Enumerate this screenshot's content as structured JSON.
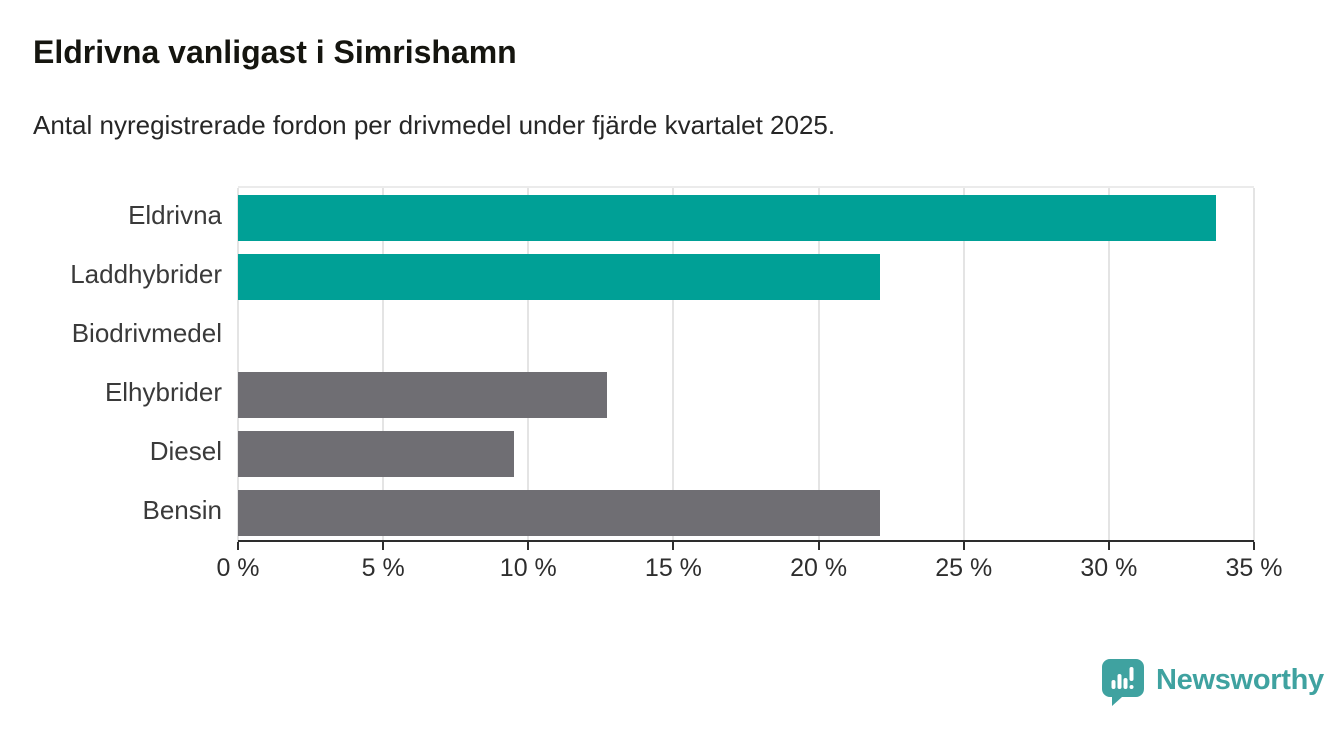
{
  "header": {
    "title": "Eldrivna vanligast i Simrishamn",
    "subtitle": "Antal nyregistrerade fordon per drivmedel under fjärde kvartalet 2025."
  },
  "chart_data": {
    "type": "bar",
    "orientation": "horizontal",
    "categories": [
      "Eldrivna",
      "Laddhybrider",
      "Biodrivmedel",
      "Elhybrider",
      "Diesel",
      "Bensin"
    ],
    "values": [
      33.7,
      22.1,
      0,
      12.7,
      9.5,
      22.1
    ],
    "unit": "%",
    "xlim": [
      0,
      35
    ],
    "x_ticks": [
      0,
      5,
      10,
      15,
      20,
      25,
      30,
      35
    ],
    "x_tick_labels": [
      "0 %",
      "5 %",
      "10 %",
      "15 %",
      "20 %",
      "25 %",
      "30 %",
      "35 %"
    ],
    "bar_colors": [
      "#00a096",
      "#00a096",
      "#6f6e73",
      "#6f6e73",
      "#6f6e73",
      "#6f6e73"
    ],
    "grid": true,
    "legend": null,
    "title": "Eldrivna vanligast i Simrishamn",
    "xlabel": "",
    "ylabel": ""
  },
  "colors": {
    "highlight_teal": "#00a096",
    "neutral_gray": "#6f6e73",
    "axis": "#2d2d2d",
    "gridline": "#e4e4e4",
    "text_dark": "#15150f",
    "brand_teal": "#3fa2a0",
    "background": "#ffffff"
  },
  "footer": {
    "brand": "Newsworthy",
    "logo_icon": "newsworthy-speech-bubble-bar-chart-icon"
  }
}
